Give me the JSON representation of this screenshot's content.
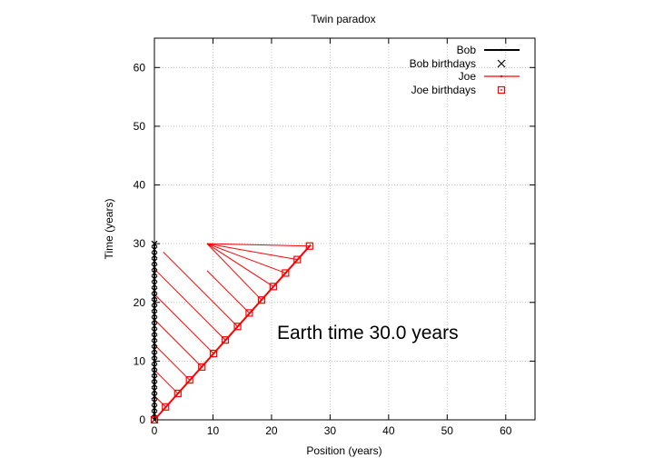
{
  "chart_data": {
    "type": "scatter",
    "title": "Twin paradox",
    "xlabel": "Position (years)",
    "ylabel": "Time (years)",
    "xlim": [
      0,
      65
    ],
    "ylim": [
      0,
      65
    ],
    "xticks": [
      0,
      10,
      20,
      30,
      40,
      50,
      60
    ],
    "yticks": [
      0,
      10,
      20,
      30,
      40,
      50,
      60
    ],
    "x_tick_labels": [
      "0",
      "10",
      "20",
      "30",
      "40",
      "50",
      "60"
    ],
    "y_tick_labels": [
      "0",
      "10",
      "20",
      "30",
      "40",
      "50",
      "60"
    ],
    "grid": true,
    "legend_position": "top-right",
    "annotation": "Earth time 30.0 years",
    "series": [
      {
        "name": "Bob",
        "kind": "line",
        "color": "#000000",
        "x": [
          0,
          0
        ],
        "y": [
          0,
          30
        ]
      },
      {
        "name": "Bob birthdays",
        "kind": "markers",
        "marker": "x",
        "color": "#000000",
        "x": [
          0,
          0,
          0,
          0,
          0,
          0,
          0,
          0,
          0,
          0,
          0,
          0,
          0,
          0,
          0,
          0,
          0,
          0,
          0,
          0,
          0,
          0,
          0,
          0,
          0,
          0,
          0,
          0,
          0,
          0,
          0
        ],
        "y": [
          0,
          1,
          2,
          3,
          4,
          5,
          6,
          7,
          8,
          9,
          10,
          11,
          12,
          13,
          14,
          15,
          16,
          17,
          18,
          19,
          20,
          21,
          22,
          23,
          24,
          25,
          26,
          27,
          28,
          29,
          30
        ]
      },
      {
        "name": "Joe",
        "kind": "line",
        "color": "#ff0000",
        "x": [
          0,
          26.7
        ],
        "y": [
          0,
          29.8
        ]
      },
      {
        "name": "Joe birthdays",
        "kind": "markers",
        "marker": "square",
        "color": "#ff0000",
        "x": [
          0,
          1.9,
          4.0,
          6.0,
          8.1,
          10.1,
          12.1,
          14.2,
          16.2,
          18.3,
          20.3,
          22.4,
          24.4,
          26.5
        ],
        "y": [
          0,
          2.2,
          4.5,
          6.8,
          9.0,
          11.3,
          13.6,
          15.9,
          18.2,
          20.4,
          22.7,
          25.0,
          27.3,
          29.6
        ]
      }
    ],
    "light_lines": {
      "color": "#ff0000",
      "segments": [
        {
          "x": [
            1.9,
            0
          ],
          "y": [
            2.2,
            4.1
          ]
        },
        {
          "x": [
            4.0,
            0
          ],
          "y": [
            4.5,
            8.5
          ]
        },
        {
          "x": [
            6.0,
            0
          ],
          "y": [
            6.8,
            12.8
          ]
        },
        {
          "x": [
            8.1,
            0
          ],
          "y": [
            9.0,
            17.1
          ]
        },
        {
          "x": [
            10.1,
            0
          ],
          "y": [
            11.3,
            21.4
          ]
        },
        {
          "x": [
            12.1,
            0
          ],
          "y": [
            13.6,
            25.7
          ]
        },
        {
          "x": [
            14.2,
            1.5
          ],
          "y": [
            15.9,
            28.6
          ]
        },
        {
          "x": [
            16.2,
            9.0
          ],
          "y": [
            18.2,
            25.4
          ]
        },
        {
          "x": [
            18.3,
            9.0
          ],
          "y": [
            20.4,
            30.0
          ]
        },
        {
          "x": [
            20.3,
            9.0
          ],
          "y": [
            22.7,
            30.0
          ]
        },
        {
          "x": [
            22.4,
            9.0
          ],
          "y": [
            25.0,
            30.0
          ]
        },
        {
          "x": [
            24.4,
            9.0
          ],
          "y": [
            27.3,
            30.0
          ]
        },
        {
          "x": [
            26.5,
            9.0
          ],
          "y": [
            29.6,
            30.0
          ]
        }
      ]
    }
  }
}
